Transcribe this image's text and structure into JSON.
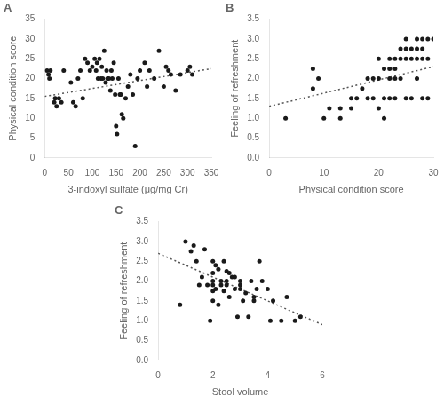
{
  "chart_data": [
    {
      "type": "scatter",
      "title": "A",
      "xlabel": "3-indoxyl sulfate (μg/mg Cr)",
      "ylabel": "Physical condition score",
      "xlim": [
        0,
        350
      ],
      "ylim": [
        0,
        35
      ],
      "xticks": [
        0,
        50,
        100,
        150,
        200,
        250,
        300,
        350
      ],
      "yticks": [
        0,
        5,
        10,
        15,
        20,
        25,
        30,
        35
      ],
      "grid": false,
      "series": [
        {
          "type": "scatter",
          "marker": "circle",
          "color": "#1a1a1a",
          "x": [
            5,
            8,
            10,
            12,
            20,
            22,
            25,
            30,
            35,
            40,
            55,
            60,
            65,
            70,
            75,
            80,
            85,
            90,
            95,
            100,
            105,
            108,
            110,
            112,
            115,
            118,
            120,
            122,
            125,
            128,
            130,
            132,
            135,
            138,
            140,
            142,
            145,
            148,
            150,
            152,
            155,
            158,
            160,
            162,
            165,
            170,
            175,
            180,
            185,
            190,
            195,
            200,
            210,
            215,
            220,
            230,
            240,
            250,
            255,
            260,
            265,
            275,
            285,
            300,
            305,
            310
          ],
          "values": [
            22,
            21,
            20,
            22,
            14,
            15,
            13,
            15,
            14,
            22,
            19,
            14,
            13,
            20,
            22,
            15,
            25,
            24,
            22,
            23,
            25,
            22,
            24,
            20,
            25,
            20,
            23,
            20,
            27,
            19,
            22,
            20,
            20,
            17,
            22,
            20,
            24,
            16,
            8,
            6,
            20,
            16,
            16,
            11,
            10,
            15,
            18,
            21,
            16,
            3,
            20,
            22,
            24,
            18,
            22,
            20,
            27,
            18,
            23,
            22,
            21,
            17,
            21,
            22,
            23,
            21
          ]
        },
        {
          "type": "line",
          "line_style": "dotted",
          "color": "#555555",
          "x": [
            0,
            350
          ],
          "values": [
            15.5,
            22.5
          ]
        }
      ]
    },
    {
      "type": "scatter",
      "title": "B",
      "xlabel": "Physical condition score",
      "ylabel": "Feeling of refreshment",
      "xlim": [
        0,
        30
      ],
      "ylim": [
        0,
        3.5
      ],
      "xticks": [
        0,
        10,
        20,
        30
      ],
      "yticks": [
        {
          "value": 0,
          "label": "0.0"
        },
        0.5,
        {
          "value": 1,
          "label": "1.0"
        },
        1.5,
        {
          "value": 2,
          "label": "2.0"
        },
        2.5,
        {
          "value": 3,
          "label": "3.0"
        },
        3.5
      ],
      "grid": false,
      "series": [
        {
          "type": "scatter",
          "marker": "circle",
          "color": "#1a1a1a",
          "x": [
            3,
            8,
            8,
            9,
            10,
            11,
            13,
            13,
            15,
            15,
            16,
            17,
            18,
            18,
            19,
            19,
            20,
            20,
            20,
            21,
            21,
            21,
            22,
            22,
            22,
            22,
            23,
            23,
            23,
            23,
            24,
            24,
            24,
            25,
            25,
            25,
            25,
            26,
            26,
            26,
            27,
            27,
            27,
            27,
            28,
            28,
            28,
            28,
            29,
            29,
            29,
            30
          ],
          "values": [
            1.0,
            1.75,
            2.25,
            2.0,
            1.0,
            1.25,
            1.25,
            1.0,
            1.5,
            1.25,
            1.5,
            1.75,
            2.0,
            1.5,
            1.5,
            2.0,
            2.5,
            2.0,
            1.25,
            2.25,
            1.5,
            1.0,
            2.5,
            2.25,
            2.0,
            1.5,
            2.5,
            2.25,
            2.0,
            1.5,
            2.75,
            2.5,
            2.0,
            3.0,
            2.75,
            2.5,
            1.5,
            2.75,
            2.5,
            1.5,
            3.0,
            2.75,
            2.5,
            2.0,
            3.0,
            2.75,
            2.5,
            1.5,
            3.0,
            2.5,
            1.5,
            3.0
          ]
        },
        {
          "type": "line",
          "line_style": "dotted",
          "color": "#555555",
          "x": [
            0,
            30
          ],
          "values": [
            1.3,
            2.3
          ]
        }
      ]
    },
    {
      "type": "scatter",
      "title": "C",
      "xlabel": "Stool volume",
      "ylabel": "Feeling of refreshment",
      "xlim": [
        0,
        6
      ],
      "ylim": [
        0,
        3.5
      ],
      "xticks": [
        0,
        2,
        4,
        6
      ],
      "yticks": [
        {
          "value": 0,
          "label": "0.0"
        },
        0.5,
        {
          "value": 1,
          "label": "1.0"
        },
        1.5,
        {
          "value": 2,
          "label": "2.0"
        },
        2.5,
        {
          "value": 3,
          "label": "3.0"
        },
        3.5
      ],
      "grid": false,
      "series": [
        {
          "type": "scatter",
          "marker": "circle",
          "color": "#1a1a1a",
          "x": [
            0.8,
            1.0,
            1.2,
            1.3,
            1.4,
            1.5,
            1.6,
            1.7,
            1.8,
            1.9,
            2.0,
            2.0,
            2.0,
            2.0,
            2.0,
            2.0,
            2.1,
            2.1,
            2.2,
            2.2,
            2.3,
            2.3,
            2.4,
            2.4,
            2.5,
            2.5,
            2.5,
            2.6,
            2.6,
            2.7,
            2.8,
            2.8,
            2.9,
            3.0,
            3.0,
            3.0,
            3.1,
            3.2,
            3.3,
            3.4,
            3.5,
            3.5,
            3.6,
            3.7,
            3.8,
            4.0,
            4.1,
            4.2,
            4.5,
            4.7,
            5.0,
            5.2
          ],
          "values": [
            1.4,
            3.0,
            2.75,
            2.9,
            2.5,
            1.9,
            2.1,
            2.8,
            1.9,
            1.0,
            2.5,
            2.2,
            2.0,
            1.9,
            1.75,
            1.5,
            2.4,
            1.8,
            2.3,
            1.4,
            2.0,
            1.9,
            2.5,
            1.75,
            1.9,
            2.25,
            2.0,
            2.2,
            1.6,
            2.1,
            2.1,
            1.8,
            1.1,
            1.9,
            1.8,
            2.0,
            1.5,
            1.7,
            1.1,
            2.0,
            1.5,
            1.6,
            1.8,
            2.5,
            2.0,
            1.8,
            1.0,
            1.5,
            1.0,
            1.6,
            1.0,
            1.1
          ]
        },
        {
          "type": "line",
          "line_style": "dotted",
          "color": "#555555",
          "x": [
            0,
            6
          ],
          "values": [
            2.7,
            0.9
          ]
        }
      ]
    }
  ]
}
